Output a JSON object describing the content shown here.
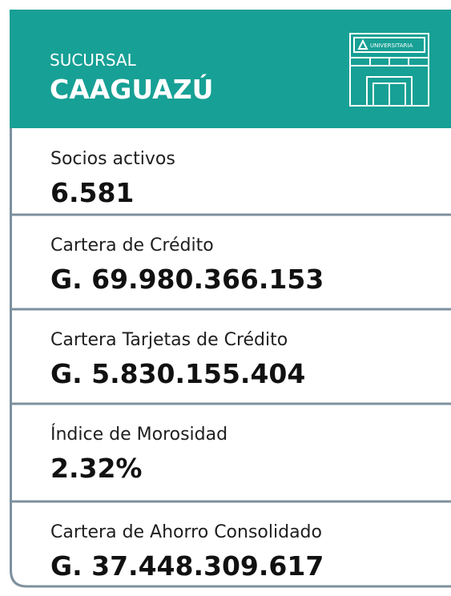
{
  "header": {
    "label": "SUCURSAL",
    "title": "CAAGUAZÚ",
    "icon_label": "UNIVERSITARIA"
  },
  "items": [
    {
      "label": "Socios activos",
      "value": "6.581"
    },
    {
      "label": "Cartera de Crédito",
      "value": "G. 69.980.366.153"
    },
    {
      "label": "Cartera Tarjetas de Crédito",
      "value": "G. 5.830.155.404"
    },
    {
      "label": "Índice de Morosidad",
      "value": "2.32%"
    },
    {
      "label": "Cartera de Ahorro Consolidado",
      "value": "G. 37.448.309.617"
    }
  ]
}
